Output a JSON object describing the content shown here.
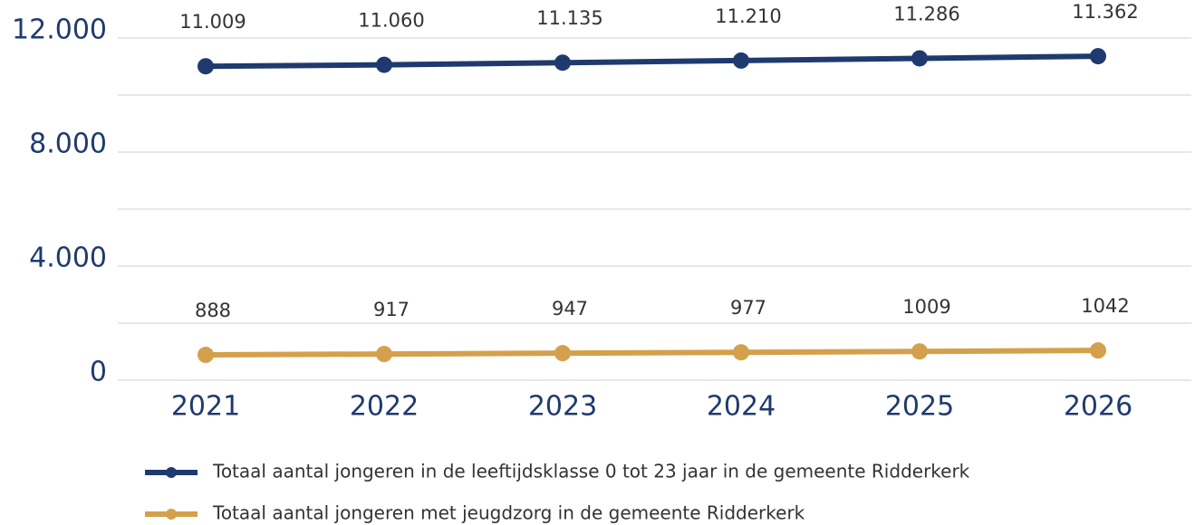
{
  "chart_data": {
    "type": "line",
    "categories": [
      "2021",
      "2022",
      "2023",
      "2024",
      "2025",
      "2026"
    ],
    "series": [
      {
        "name": "Totaal aantal jongeren in de leeftijdsklasse 0 tot 23 jaar in de gemeente Ridderkerk",
        "color": "#1f3a6e",
        "values": [
          11009,
          11060,
          11135,
          11210,
          11286,
          11362
        ],
        "value_labels": [
          "11.009",
          "11.060",
          "11.135",
          "11.210",
          "11.286",
          "11.362"
        ]
      },
      {
        "name": "Totaal aantal jongeren met jeugdzorg in de gemeente Ridderkerk",
        "color": "#d4a04c",
        "values": [
          888,
          917,
          947,
          977,
          1009,
          1042
        ]
      }
    ],
    "ylim": [
      0,
      12000
    ],
    "yticks": [
      {
        "value": 0,
        "label": "0"
      },
      {
        "value": 4000,
        "label": "4.000"
      },
      {
        "value": 8000,
        "label": "8.000"
      },
      {
        "value": 12000,
        "label": "12.000"
      }
    ],
    "minor_yticks": [
      2000,
      6000,
      10000
    ],
    "grid": true,
    "legend": "bottom"
  }
}
